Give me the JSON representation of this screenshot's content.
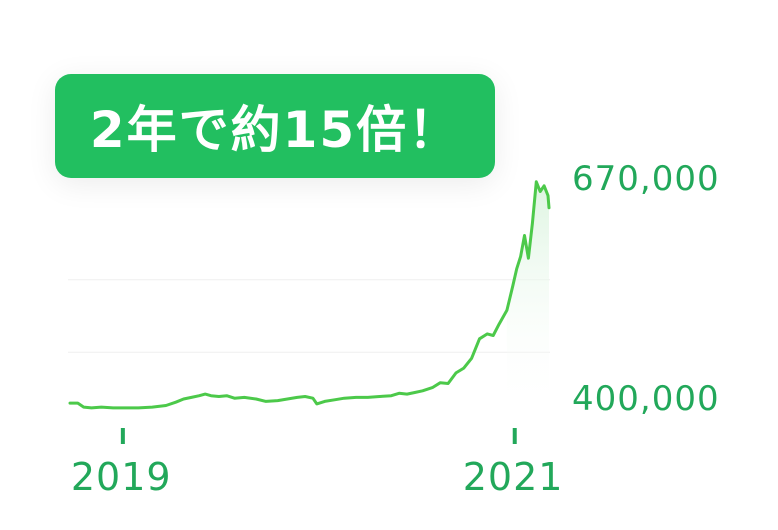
{
  "badge": {
    "text": "2年で約15倍！"
  },
  "colors": {
    "line": "#4cc94a",
    "accent": "#22bf60",
    "axis_text": "#22a85a",
    "grid": "#efefef"
  },
  "chart_data": {
    "type": "line",
    "title": "",
    "xlabel": "",
    "ylabel": "",
    "x_ticks": [
      2019,
      2021
    ],
    "y_ticks": [
      {
        "value": 400000,
        "label": "400,000"
      },
      {
        "value": 670000,
        "label": "670,000"
      }
    ],
    "xlim": [
      2018.72,
      2021.18
    ],
    "ylim": [
      386000,
      681000
    ],
    "series": [
      {
        "values": [
          [
            2018.73,
            397000
          ],
          [
            2018.77,
            397000
          ],
          [
            2018.8,
            392000
          ],
          [
            2018.84,
            391000
          ],
          [
            2018.89,
            392000
          ],
          [
            2018.95,
            391000
          ],
          [
            2019.0,
            391000
          ],
          [
            2019.08,
            391000
          ],
          [
            2019.15,
            392000
          ],
          [
            2019.22,
            394000
          ],
          [
            2019.27,
            398000
          ],
          [
            2019.31,
            402000
          ],
          [
            2019.35,
            404000
          ],
          [
            2019.39,
            406000
          ],
          [
            2019.42,
            408000
          ],
          [
            2019.45,
            406000
          ],
          [
            2019.49,
            405000
          ],
          [
            2019.53,
            406000
          ],
          [
            2019.57,
            403000
          ],
          [
            2019.62,
            404000
          ],
          [
            2019.68,
            402000
          ],
          [
            2019.73,
            399000
          ],
          [
            2019.79,
            400000
          ],
          [
            2019.84,
            402000
          ],
          [
            2019.89,
            404000
          ],
          [
            2019.93,
            405000
          ],
          [
            2019.97,
            403000
          ],
          [
            2019.99,
            396000
          ],
          [
            2020.03,
            399000
          ],
          [
            2020.08,
            401000
          ],
          [
            2020.13,
            403000
          ],
          [
            2020.19,
            404000
          ],
          [
            2020.25,
            404000
          ],
          [
            2020.31,
            405000
          ],
          [
            2020.37,
            406000
          ],
          [
            2020.41,
            409000
          ],
          [
            2020.45,
            408000
          ],
          [
            2020.49,
            410000
          ],
          [
            2020.53,
            412000
          ],
          [
            2020.58,
            416000
          ],
          [
            2020.62,
            422000
          ],
          [
            2020.66,
            421000
          ],
          [
            2020.7,
            434000
          ],
          [
            2020.74,
            440000
          ],
          [
            2020.78,
            452000
          ],
          [
            2020.82,
            476000
          ],
          [
            2020.86,
            482000
          ],
          [
            2020.89,
            480000
          ],
          [
            2020.92,
            494000
          ],
          [
            2020.96,
            511000
          ],
          [
            2020.99,
            541000
          ],
          [
            2021.01,
            562000
          ],
          [
            2021.03,
            577000
          ],
          [
            2021.05,
            603000
          ],
          [
            2021.07,
            575000
          ],
          [
            2021.09,
            618000
          ],
          [
            2021.11,
            669000
          ],
          [
            2021.13,
            657000
          ],
          [
            2021.15,
            664000
          ],
          [
            2021.17,
            652000
          ],
          [
            2021.175,
            637000
          ]
        ]
      }
    ]
  }
}
